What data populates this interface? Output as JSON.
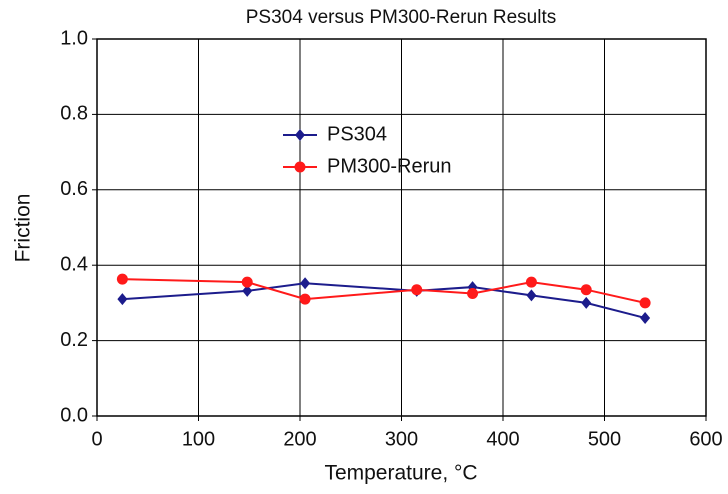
{
  "chart_data": {
    "type": "line",
    "title": "PS304 versus PM300-Rerun Results",
    "xlabel": "Temperature, °C",
    "ylabel": "Friction",
    "x": [
      25,
      148,
      205,
      315,
      370,
      428,
      482,
      540
    ],
    "series": [
      {
        "name": "PS304",
        "color": "#1c1c8c",
        "marker": "diamond",
        "values": [
          0.31,
          0.332,
          0.352,
          0.332,
          0.342,
          0.32,
          0.3,
          0.26
        ]
      },
      {
        "name": "PM300-Rerun",
        "color": "#ff1a1a",
        "marker": "circle",
        "values": [
          0.363,
          0.355,
          0.31,
          0.335,
          0.325,
          0.355,
          0.335,
          0.3
        ]
      }
    ],
    "xlim": [
      0,
      600
    ],
    "xticks": [
      0,
      100,
      200,
      300,
      400,
      500,
      600
    ],
    "ylim": [
      0,
      1
    ],
    "yticks": [
      {
        "value": 0,
        "label": "0.0"
      },
      0.2,
      0.4,
      0.6,
      0.8,
      {
        "value": 1,
        "label": "1.0"
      }
    ],
    "grid": true,
    "legend": "upper-center"
  }
}
